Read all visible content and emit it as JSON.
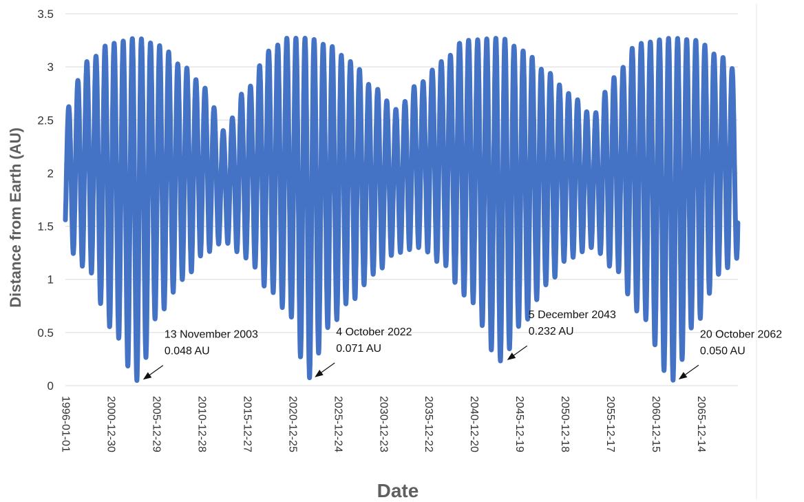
{
  "chart_data": {
    "type": "line",
    "xlabel": "Date",
    "ylabel": "Distance from Earth (AU)",
    "ylim": [
      0,
      3.5
    ],
    "yticks": [
      "0",
      "0.5",
      "1",
      "1.5",
      "2",
      "2.5",
      "3",
      "3.5"
    ],
    "xlim": [
      "1996-01-01",
      "2070-01-01"
    ],
    "xticks": [
      "1996-01-01",
      "2000-12-30",
      "2005-12-29",
      "2010-12-28",
      "2015-12-27",
      "2020-12-25",
      "2025-12-24",
      "2030-12-23",
      "2035-12-22",
      "2040-12-20",
      "2045-12-19",
      "2050-12-18",
      "2055-12-17",
      "2060-12-15",
      "2065-12-14"
    ],
    "grid": "horizontal",
    "series_color": "#4472C4",
    "series": [
      {
        "x": [
          "1996-01-01",
          "1998-06-01",
          "2001-01-01",
          "2003-11-13",
          "2006-06-01",
          "2009-01-01",
          "2011-06-01",
          "2013-06-01",
          "2016-01-01",
          "2018-06-01",
          "2020-06-01",
          "2022-10-04",
          "2025-01-01",
          "2027-06-01",
          "2030-01-01",
          "2032-06-01",
          "2035-01-01",
          "2037-06-01",
          "2040-01-01",
          "2043-12-05",
          "2046-06-01",
          "2049-01-01",
          "2051-06-01",
          "2054-01-01",
          "2056-06-01",
          "2059-01-01",
          "2062-10-20",
          "2065-06-01",
          "2068-01-01",
          "2070-01-01"
        ],
        "envelope_max": [
          2.6,
          3.05,
          3.22,
          3.27,
          3.2,
          3.0,
          2.8,
          2.4,
          2.8,
          3.15,
          3.27,
          3.27,
          3.2,
          3.05,
          2.8,
          2.6,
          2.85,
          3.05,
          3.25,
          3.27,
          3.15,
          2.95,
          2.75,
          2.55,
          2.9,
          3.22,
          3.27,
          3.25,
          3.1,
          2.95
        ],
        "envelope_min": [
          1.3,
          1.1,
          0.55,
          0.048,
          0.7,
          1.0,
          1.25,
          1.35,
          1.2,
          0.9,
          0.7,
          0.071,
          0.55,
          0.8,
          1.05,
          1.25,
          1.3,
          1.15,
          0.85,
          0.232,
          0.6,
          0.95,
          1.2,
          1.3,
          1.1,
          0.7,
          0.05,
          0.6,
          1.05,
          1.2
        ]
      }
    ],
    "annotations": [
      {
        "date": "2003-11-13",
        "value": 0.048,
        "line1": "13 November 2003",
        "line2": "0.048 AU"
      },
      {
        "date": "2022-10-04",
        "value": 0.071,
        "line1": "4 October 2022",
        "line2": "0.071 AU"
      },
      {
        "date": "2043-12-05",
        "value": 0.232,
        "line1": "5 December 2043",
        "line2": "0.232 AU"
      },
      {
        "date": "2062-10-20",
        "value": 0.05,
        "line1": "20 October 2062",
        "line2": "0.050 AU"
      }
    ]
  }
}
